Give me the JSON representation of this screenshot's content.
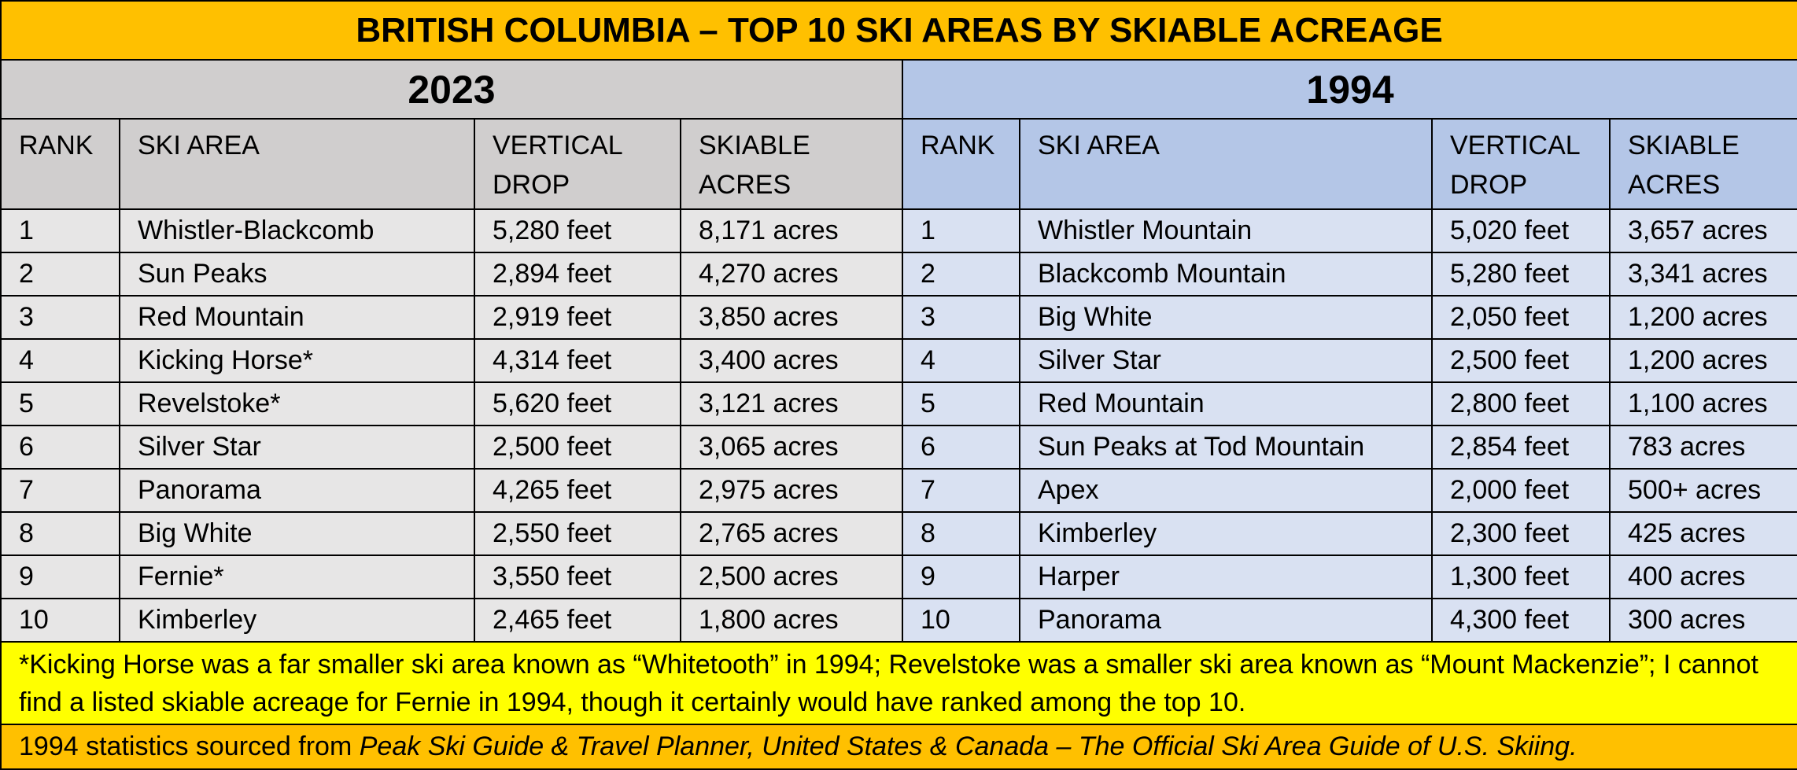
{
  "title": "BRITISH COLUMBIA – TOP 10 SKI AREAS BY SKIABLE ACREAGE",
  "tables": [
    {
      "year": "2023",
      "headers": [
        "RANK",
        "SKI AREA",
        "VERTICAL DROP",
        "SKIABLE ACRES"
      ],
      "rows": [
        [
          "1",
          "Whistler-Blackcomb",
          "5,280 feet",
          "8,171 acres"
        ],
        [
          "2",
          "Sun Peaks",
          "2,894 feet",
          "4,270 acres"
        ],
        [
          "3",
          "Red Mountain",
          "2,919 feet",
          "3,850 acres"
        ],
        [
          "4",
          "Kicking Horse*",
          "4,314 feet",
          "3,400 acres"
        ],
        [
          "5",
          "Revelstoke*",
          "5,620 feet",
          "3,121 acres"
        ],
        [
          "6",
          "Silver Star",
          "2,500 feet",
          "3,065 acres"
        ],
        [
          "7",
          "Panorama",
          "4,265 feet",
          "2,975 acres"
        ],
        [
          "8",
          "Big White",
          "2,550 feet",
          "2,765 acres"
        ],
        [
          "9",
          "Fernie*",
          "3,550 feet",
          "2,500 acres"
        ],
        [
          "10",
          "Kimberley",
          "2,465 feet",
          "1,800 acres"
        ]
      ]
    },
    {
      "year": "1994",
      "headers": [
        "RANK",
        "SKI AREA",
        "VERTICAL DROP",
        "SKIABLE ACRES"
      ],
      "rows": [
        [
          "1",
          "Whistler Mountain",
          "5,020 feet",
          "3,657 acres"
        ],
        [
          "2",
          "Blackcomb Mountain",
          "5,280 feet",
          "3,341 acres"
        ],
        [
          "3",
          "Big White",
          "2,050 feet",
          "1,200 acres"
        ],
        [
          "4",
          "Silver Star",
          "2,500 feet",
          "1,200 acres"
        ],
        [
          "5",
          "Red Mountain",
          "2,800 feet",
          "1,100 acres"
        ],
        [
          "6",
          "Sun Peaks at Tod Mountain",
          "2,854 feet",
          "783 acres"
        ],
        [
          "7",
          "Apex",
          "2,000 feet",
          "500+ acres"
        ],
        [
          "8",
          "Kimberley",
          "2,300 feet",
          "425 acres"
        ],
        [
          "9",
          "Harper",
          "1,300 feet",
          "400 acres"
        ],
        [
          "10",
          "Panorama",
          "4,300 feet",
          "300 acres"
        ]
      ]
    }
  ],
  "footnote": "*Kicking Horse was a far smaller ski area known as “Whitetooth” in 1994; Revelstoke was a smaller ski area known as “Mount Mackenzie”; I cannot find a listed skiable acreage for Fernie in 1994, though it certainly would have ranked among the top 10.",
  "source": {
    "prefix": "1994 statistics sourced from ",
    "work": "Peak Ski Guide & Travel Planner, United States & Canada – The Official Ski Area Guide of U.S. Skiing."
  }
}
